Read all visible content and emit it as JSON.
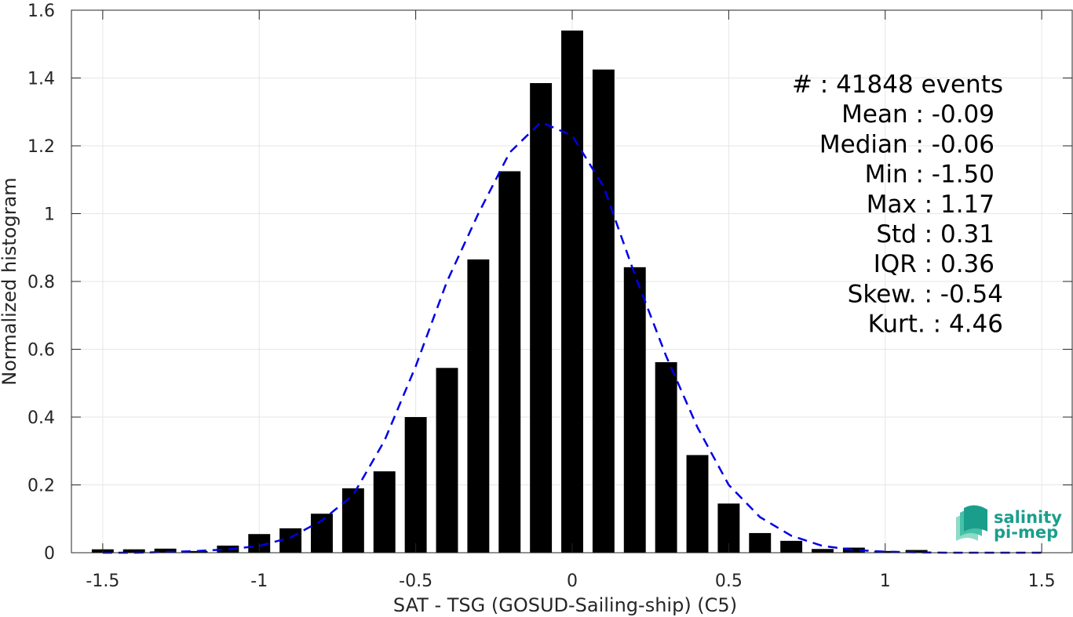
{
  "chart_data": {
    "type": "bar",
    "xlabel": "SAT - TSG (GOSUD-Sailing-ship) (C5)",
    "ylabel": "Normalized histogram",
    "xlim": [
      -1.6,
      1.6
    ],
    "ylim": [
      0,
      1.6
    ],
    "xticks": [
      -1.5,
      -1,
      -0.5,
      0,
      0.5,
      1,
      1.5
    ],
    "xtick_labels": [
      "-1.5",
      "-1",
      "-0.5",
      "0",
      "0.5",
      "1",
      "1.5"
    ],
    "yticks": [
      0,
      0.2,
      0.4,
      0.6,
      0.8,
      1,
      1.2,
      1.4,
      1.6
    ],
    "ytick_labels": [
      "0",
      "0.2",
      "0.4",
      "0.6",
      "0.8",
      "1",
      "1.2",
      "1.4",
      "1.6"
    ],
    "grid": true,
    "bar_color": "#000000",
    "bar_width": 0.07,
    "bars": {
      "x": [
        -1.5,
        -1.4,
        -1.3,
        -1.2,
        -1.1,
        -1.0,
        -0.9,
        -0.8,
        -0.7,
        -0.6,
        -0.5,
        -0.4,
        -0.3,
        -0.2,
        -0.1,
        0.0,
        0.1,
        0.2,
        0.3,
        0.4,
        0.5,
        0.6,
        0.7,
        0.8,
        0.9,
        1.0,
        1.1
      ],
      "y": [
        0.01,
        0.01,
        0.012,
        0.005,
        0.021,
        0.055,
        0.072,
        0.115,
        0.19,
        0.24,
        0.4,
        0.545,
        0.865,
        1.125,
        1.385,
        1.54,
        1.425,
        0.842,
        0.562,
        0.288,
        0.145,
        0.058,
        0.035,
        0.011,
        0.015,
        0.005,
        0.008
      ]
    },
    "fit_curve": {
      "color": "#0000e6",
      "style": "dashed",
      "x": [
        -1.5,
        -1.4,
        -1.3,
        -1.2,
        -1.1,
        -1.0,
        -0.9,
        -0.8,
        -0.7,
        -0.6,
        -0.5,
        -0.4,
        -0.3,
        -0.2,
        -0.1,
        0.0,
        0.1,
        0.2,
        0.3,
        0.4,
        0.5,
        0.6,
        0.7,
        0.8,
        0.9,
        1.0,
        1.1,
        1.2,
        1.3,
        1.4,
        1.5
      ],
      "y": [
        0.0,
        0.0,
        0.002,
        0.005,
        0.01,
        0.02,
        0.045,
        0.095,
        0.17,
        0.33,
        0.55,
        0.8,
        1.0,
        1.18,
        1.27,
        1.23,
        1.08,
        0.82,
        0.58,
        0.37,
        0.2,
        0.105,
        0.05,
        0.02,
        0.008,
        0.003,
        0.001,
        0.0,
        0.0,
        0.0,
        0.0
      ]
    },
    "stats": [
      {
        "label": "#  : 41848 events"
      },
      {
        "label": "Mean : -0.09"
      },
      {
        "label": "Median : -0.06"
      },
      {
        "label": "Min : -1.50"
      },
      {
        "label": "Max : 1.17"
      },
      {
        "label": "Std : 0.31"
      },
      {
        "label": "IQR : 0.36"
      },
      {
        "label": "Skew. : -0.54"
      },
      {
        "label": "Kurt. : 4.46"
      }
    ]
  },
  "logo": {
    "line1": "salinity",
    "line2": "pi-mep",
    "colors": [
      "#1a9e8c",
      "#45c1a8",
      "#8fdcc8"
    ]
  }
}
